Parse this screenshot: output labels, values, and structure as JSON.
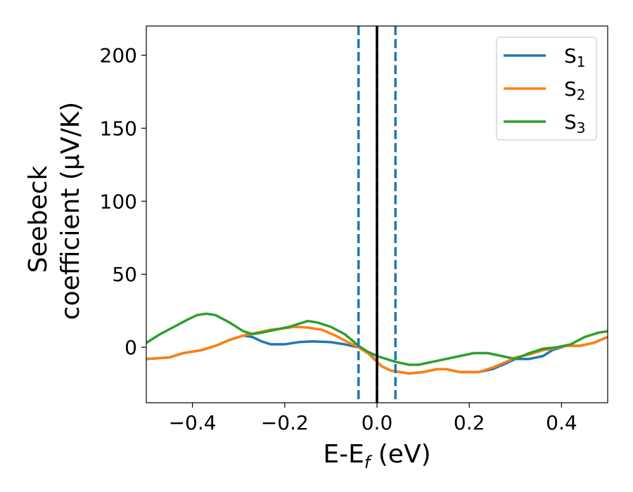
{
  "chart_data": {
    "type": "line",
    "title": "",
    "xlabel": "E-E_f (eV)",
    "xlabel_main": "E-E",
    "xlabel_sub": "f",
    "xlabel_tail": " (eV)",
    "ylabel_line1": "Seebeck",
    "ylabel_line2": "coefficient  (μV/K)",
    "xlim": [
      -0.5,
      0.5
    ],
    "ylim": [
      -38,
      220
    ],
    "xticks": [
      -0.4,
      -0.2,
      0.0,
      0.2,
      0.4
    ],
    "xtick_labels": [
      "−0.4",
      "−0.2",
      "0.0",
      "0.2",
      "0.4"
    ],
    "yticks": [
      0,
      50,
      100,
      150,
      200
    ],
    "ytick_labels": [
      "0",
      "50",
      "100",
      "150",
      "200"
    ],
    "grid": false,
    "legend_position": "top-right",
    "vertical_lines": [
      {
        "x": -0.04,
        "style": "dashed",
        "color": "#1f77b4"
      },
      {
        "x": 0.0,
        "style": "dashed",
        "color": "#1f77b4"
      },
      {
        "x": 0.04,
        "style": "dashed",
        "color": "#1f77b4"
      },
      {
        "x": 0.0,
        "style": "solid",
        "color": "#000000"
      }
    ],
    "series": [
      {
        "name": "S",
        "sub": "1",
        "color": "#1f77b4",
        "points": [
          [
            -0.5,
            -8
          ],
          [
            -0.45,
            -7
          ],
          [
            -0.42,
            -4
          ],
          [
            -0.38,
            -2
          ],
          [
            -0.35,
            1
          ],
          [
            -0.32,
            5
          ],
          [
            -0.29,
            8
          ],
          [
            -0.27,
            7
          ],
          [
            -0.25,
            4
          ],
          [
            -0.23,
            2
          ],
          [
            -0.2,
            2
          ],
          [
            -0.17,
            3.5
          ],
          [
            -0.14,
            4
          ],
          [
            -0.1,
            3.5
          ],
          [
            -0.07,
            2
          ],
          [
            -0.04,
            0
          ],
          [
            -0.02,
            -3
          ],
          [
            0.0,
            -10
          ],
          [
            0.01,
            -13
          ],
          [
            0.03,
            -16
          ],
          [
            0.07,
            -18
          ],
          [
            0.1,
            -17
          ],
          [
            0.13,
            -15
          ],
          [
            0.15,
            -15
          ],
          [
            0.18,
            -17
          ],
          [
            0.22,
            -17
          ],
          [
            0.25,
            -15
          ],
          [
            0.28,
            -11
          ],
          [
            0.3,
            -8
          ],
          [
            0.33,
            -8
          ],
          [
            0.36,
            -6
          ],
          [
            0.38,
            -2
          ],
          [
            0.41,
            1
          ],
          [
            0.44,
            1
          ],
          [
            0.47,
            3
          ],
          [
            0.5,
            7
          ]
        ]
      },
      {
        "name": "S",
        "sub": "2",
        "color": "#ff7f0e",
        "points": [
          [
            -0.5,
            -8
          ],
          [
            -0.45,
            -7
          ],
          [
            -0.42,
            -4
          ],
          [
            -0.38,
            -2
          ],
          [
            -0.35,
            1
          ],
          [
            -0.32,
            5
          ],
          [
            -0.29,
            8
          ],
          [
            -0.26,
            10
          ],
          [
            -0.23,
            12
          ],
          [
            -0.2,
            13
          ],
          [
            -0.18,
            14
          ],
          [
            -0.15,
            13.5
          ],
          [
            -0.12,
            12
          ],
          [
            -0.09,
            8
          ],
          [
            -0.06,
            3
          ],
          [
            -0.04,
            0
          ],
          [
            -0.02,
            -4
          ],
          [
            0.0,
            -10
          ],
          [
            0.01,
            -13
          ],
          [
            0.03,
            -16
          ],
          [
            0.07,
            -18
          ],
          [
            0.1,
            -17
          ],
          [
            0.13,
            -15
          ],
          [
            0.15,
            -15
          ],
          [
            0.18,
            -17
          ],
          [
            0.22,
            -17
          ],
          [
            0.25,
            -14
          ],
          [
            0.28,
            -10
          ],
          [
            0.3,
            -7
          ],
          [
            0.33,
            -5
          ],
          [
            0.36,
            -2
          ],
          [
            0.38,
            -1
          ],
          [
            0.41,
            1
          ],
          [
            0.44,
            1
          ],
          [
            0.47,
            3
          ],
          [
            0.5,
            7
          ]
        ]
      },
      {
        "name": "S",
        "sub": "3",
        "color": "#2ca02c",
        "points": [
          [
            -0.5,
            3
          ],
          [
            -0.47,
            9
          ],
          [
            -0.44,
            14
          ],
          [
            -0.41,
            19
          ],
          [
            -0.39,
            22
          ],
          [
            -0.37,
            23
          ],
          [
            -0.35,
            22
          ],
          [
            -0.32,
            17
          ],
          [
            -0.29,
            11
          ],
          [
            -0.27,
            9
          ],
          [
            -0.25,
            10
          ],
          [
            -0.22,
            12
          ],
          [
            -0.19,
            14
          ],
          [
            -0.17,
            16
          ],
          [
            -0.15,
            18
          ],
          [
            -0.13,
            17
          ],
          [
            -0.1,
            14
          ],
          [
            -0.07,
            9
          ],
          [
            -0.04,
            1
          ],
          [
            -0.02,
            -3
          ],
          [
            0.0,
            -6
          ],
          [
            0.02,
            -8
          ],
          [
            0.04,
            -10
          ],
          [
            0.07,
            -12
          ],
          [
            0.09,
            -12
          ],
          [
            0.12,
            -10
          ],
          [
            0.15,
            -8
          ],
          [
            0.18,
            -6
          ],
          [
            0.21,
            -4
          ],
          [
            0.24,
            -4
          ],
          [
            0.27,
            -6
          ],
          [
            0.3,
            -8
          ],
          [
            0.33,
            -4
          ],
          [
            0.36,
            -1
          ],
          [
            0.39,
            0
          ],
          [
            0.42,
            2
          ],
          [
            0.45,
            7
          ],
          [
            0.48,
            10
          ],
          [
            0.5,
            11
          ]
        ]
      }
    ]
  }
}
